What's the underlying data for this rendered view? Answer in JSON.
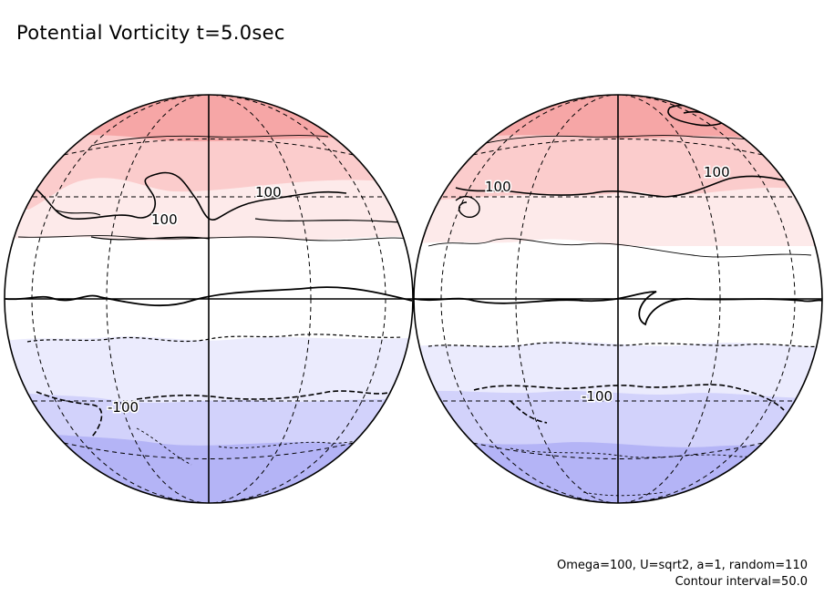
{
  "title": "Potential Vorticity t=5.0sec",
  "footer": {
    "params": "Omega=100, U=sqrt2, a=1, random=110",
    "contour_interval": "Contour interval=50.0"
  },
  "contour_labels": {
    "west": [
      "100",
      "100",
      "-100"
    ],
    "east": [
      "100",
      "100",
      "-100"
    ]
  },
  "colors": {
    "band_n1": "#f6a6a6",
    "band_n2": "#fbcccc",
    "band_n3": "#fdeaea",
    "band_0": "#ffffff",
    "band_s1": "#ebebfd",
    "band_s2": "#d2d2fb",
    "band_s3": "#b4b4f6",
    "line": "#000000"
  }
}
